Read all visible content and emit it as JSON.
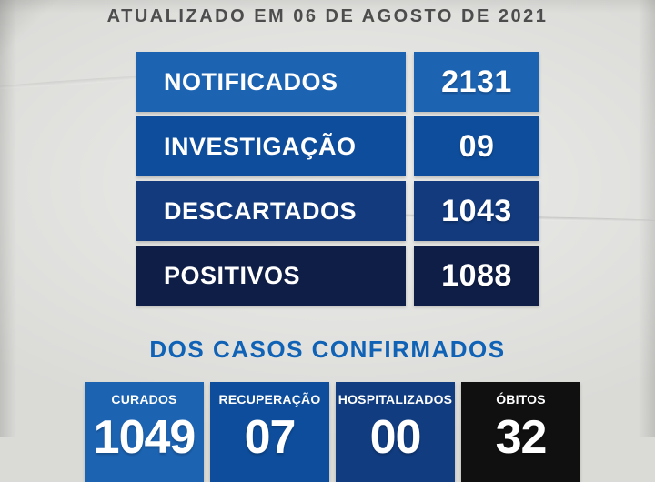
{
  "header": {
    "title": "ATUALIZADO EM 06 DE AGOSTO DE 2021"
  },
  "summary_rows": [
    {
      "label": "NOTIFICADOS",
      "value": "2131",
      "color": "#1c63b2"
    },
    {
      "label": "INVESTIGAÇÃO",
      "value": "09",
      "color": "#0d4d9b"
    },
    {
      "label": "DESCARTADOS",
      "value": "1043",
      "color": "#123a7d"
    },
    {
      "label": "POSITIVOS",
      "value": "1088",
      "color": "#0f1e47"
    }
  ],
  "section": {
    "title": "DOS CASOS CONFIRMADOS"
  },
  "confirmed_cards": [
    {
      "label": "CURADOS",
      "value": "1049",
      "color": "#1c63b2"
    },
    {
      "label": "RECUPERAÇÃO",
      "value": "07",
      "color": "#0d4d9b"
    },
    {
      "label": "HOSPITALIZADOS",
      "value": "00",
      "color": "#113c80"
    },
    {
      "label": "ÓBITOS",
      "value": "32",
      "color": "#101010"
    }
  ],
  "colors": {
    "paper_background": "#dadad7",
    "title_text": "#4d4d4d",
    "section_title_text": "#0f62b5",
    "card_text": "#ffffff"
  }
}
